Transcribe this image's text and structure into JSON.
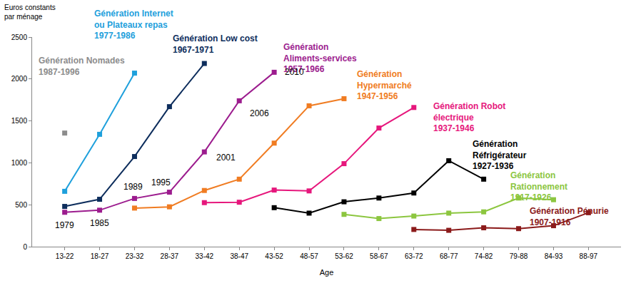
{
  "chart_data": {
    "type": "line",
    "x_label": "Age",
    "y_label": "Euros constants par ménage",
    "categories": [
      "13-22",
      "18-27",
      "23-32",
      "28-37",
      "33-42",
      "38-47",
      "43-52",
      "48-57",
      "53-62",
      "58-67",
      "63-72",
      "68-77",
      "74-82",
      "79-88",
      "84-93",
      "88-97"
    ],
    "ylim": [
      0,
      2500
    ],
    "yticks": [
      0,
      500,
      1000,
      1500,
      2000,
      2500
    ],
    "grid": false,
    "marker": "square",
    "line_style": "solid",
    "series": [
      {
        "name": "Génération Nomades 1987-1996",
        "color": "#8c8c8c",
        "values": [
          1355,
          null,
          null,
          null,
          null,
          null,
          null,
          null,
          null,
          null,
          null,
          null,
          null,
          null,
          null,
          null
        ]
      },
      {
        "name": "Génération Internet ou Plateaux repas 1977-1986",
        "color": "#1ea0dc",
        "values": [
          660,
          1340,
          2070,
          null,
          null,
          null,
          null,
          null,
          null,
          null,
          null,
          null,
          null,
          null,
          null,
          null
        ]
      },
      {
        "name": "Génération Low cost 1967-1971",
        "color": "#0d2d5c",
        "values": [
          480,
          565,
          1075,
          1670,
          2185,
          null,
          null,
          null,
          null,
          null,
          null,
          null,
          null,
          null,
          null,
          null
        ]
      },
      {
        "name": "Génération Aliments-services 1957-1966",
        "color": "#9c1c8e",
        "values": [
          410,
          435,
          575,
          650,
          1130,
          1740,
          2080,
          null,
          null,
          null,
          null,
          null,
          null,
          null,
          null,
          null
        ]
      },
      {
        "name": "Génération Hypermarché 1947-1956",
        "color": "#f07c22",
        "values": [
          null,
          null,
          460,
          475,
          670,
          805,
          1235,
          1680,
          1765,
          null,
          null,
          null,
          null,
          null,
          null,
          null
        ]
      },
      {
        "name": "Génération Robot électrique 1937-1946",
        "color": "#e6177c",
        "values": [
          null,
          null,
          null,
          null,
          525,
          530,
          675,
          665,
          990,
          1415,
          1660,
          null,
          null,
          null,
          null,
          null
        ]
      },
      {
        "name": "Génération Réfrigérateur 1927-1936",
        "color": "#000000",
        "values": [
          null,
          null,
          null,
          null,
          null,
          null,
          465,
          400,
          535,
          580,
          640,
          1025,
          805,
          null,
          null,
          null
        ]
      },
      {
        "name": "Génération Rationnement 1917-1926",
        "color": "#8cc63f",
        "values": [
          null,
          null,
          null,
          null,
          null,
          null,
          null,
          null,
          385,
          335,
          365,
          400,
          415,
          580,
          560,
          null
        ]
      },
      {
        "name": "Génération Pénurie 1907-1916",
        "color": "#8b1a1a",
        "values": [
          null,
          null,
          null,
          null,
          null,
          null,
          null,
          null,
          null,
          null,
          205,
          195,
          225,
          215,
          250,
          405
        ]
      }
    ],
    "annotations": [
      {
        "text": "1979",
        "series": "Génération Aliments-services 1957-1966",
        "category": "13-22"
      },
      {
        "text": "1985",
        "series": "Génération Aliments-services 1957-1966",
        "category": "18-27"
      },
      {
        "text": "1989",
        "series": "Génération Aliments-services 1957-1966",
        "category": "23-32"
      },
      {
        "text": "1995",
        "series": "Génération Aliments-services 1957-1966",
        "category": "28-37"
      },
      {
        "text": "2001",
        "series": "Génération Aliments-services 1957-1966",
        "category": "33-42"
      },
      {
        "text": "2006",
        "series": "Génération Aliments-services 1957-1966",
        "category": "38-47"
      },
      {
        "text": "2010",
        "series": "Génération Aliments-services 1957-1966",
        "category": "43-52"
      }
    ]
  }
}
